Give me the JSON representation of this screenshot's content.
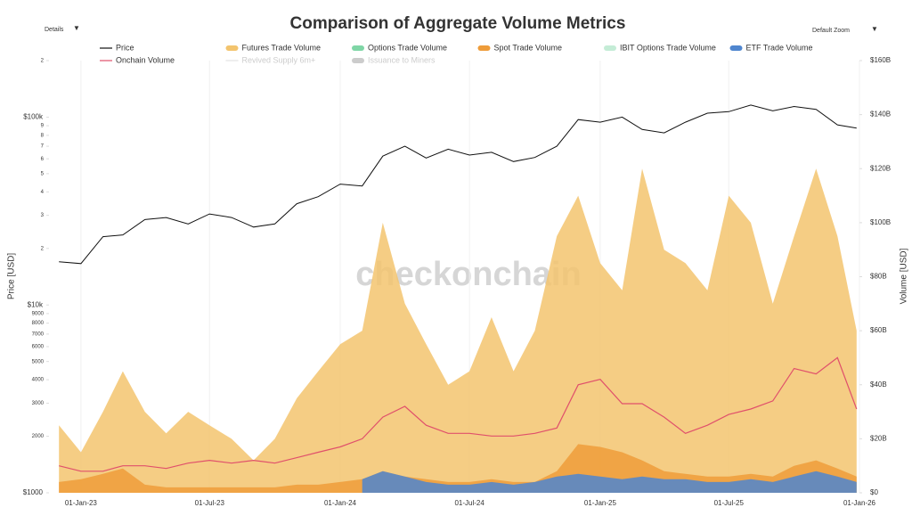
{
  "controls": {
    "details": "Details",
    "zoom": "Default Zoom"
  },
  "watermark": "checkonchain",
  "chart_data": {
    "type": "line",
    "title": "Comparison of Aggregate Volume Metrics",
    "ylabel": "Price [USD]",
    "y2label": "Volume [USD]",
    "log_y": true,
    "grid": true,
    "xlim": [
      "2022-11-17",
      "2026-01-01"
    ],
    "xticks": [
      {
        "value": "2023-01-01",
        "label": "01-Jan-23"
      },
      {
        "value": "2023-07-01",
        "label": "01-Jul-23"
      },
      {
        "value": "2024-01-01",
        "label": "01-Jan-24"
      },
      {
        "value": "2024-07-01",
        "label": "01-Jul-24"
      },
      {
        "value": "2025-01-01",
        "label": "01-Jan-25"
      },
      {
        "value": "2025-07-01",
        "label": "01-Jul-25"
      },
      {
        "value": "2026-01-01",
        "label": "01-Jan-26"
      }
    ],
    "ylim": [
      1000,
      200000
    ],
    "yticks": [
      {
        "value": 1000,
        "label": "$1000"
      },
      2000,
      3000,
      4000,
      5000,
      6000,
      7000,
      8000,
      9000,
      {
        "value": 10000,
        "label": "$10k"
      },
      {
        "value": 20000,
        "label": "2"
      },
      {
        "value": 30000,
        "label": "3"
      },
      {
        "value": 40000,
        "label": "4"
      },
      {
        "value": 50000,
        "label": "5"
      },
      {
        "value": 60000,
        "label": "6"
      },
      {
        "value": 70000,
        "label": "7"
      },
      {
        "value": 80000,
        "label": "8"
      },
      {
        "value": 90000,
        "label": "9"
      },
      {
        "value": 100000,
        "label": "$100k"
      },
      {
        "value": 200000,
        "label": "2"
      }
    ],
    "y2lim": [
      0,
      160
    ],
    "y2ticks": [
      {
        "value": 0,
        "label": "$0"
      },
      {
        "value": 20,
        "label": "$20B"
      },
      {
        "value": 40,
        "label": "$40B"
      },
      {
        "value": 60,
        "label": "$60B"
      },
      {
        "value": 80,
        "label": "$80B"
      },
      {
        "value": 100,
        "label": "$100B"
      },
      {
        "value": 120,
        "label": "$120B"
      },
      {
        "value": 140,
        "label": "$140B"
      },
      {
        "value": 160,
        "label": "$160B"
      }
    ],
    "x": [
      "2022-12-01",
      "2023-01-01",
      "2023-02-01",
      "2023-03-01",
      "2023-04-01",
      "2023-05-01",
      "2023-06-01",
      "2023-07-01",
      "2023-08-01",
      "2023-09-01",
      "2023-10-01",
      "2023-11-01",
      "2023-12-01",
      "2024-01-01",
      "2024-02-01",
      "2024-03-01",
      "2024-04-01",
      "2024-05-01",
      "2024-06-01",
      "2024-07-01",
      "2024-08-01",
      "2024-09-01",
      "2024-10-01",
      "2024-11-01",
      "2024-12-01",
      "2025-01-01",
      "2025-02-01",
      "2025-03-01",
      "2025-04-01",
      "2025-05-01",
      "2025-06-01",
      "2025-07-01",
      "2025-08-01",
      "2025-09-01",
      "2025-10-01",
      "2025-11-01",
      "2025-12-01",
      "2025-12-28"
    ],
    "series": [
      {
        "name": "Price",
        "color": "#111111",
        "style": "line",
        "axis": "y",
        "values": [
          17000,
          16600,
          23100,
          23600,
          28500,
          29200,
          27000,
          30500,
          29200,
          26000,
          27000,
          34600,
          37700,
          44000,
          43000,
          62000,
          70000,
          60600,
          67500,
          62800,
          65000,
          58000,
          61000,
          70000,
          97000,
          94000,
          100000,
          86000,
          82500,
          94000,
          105000,
          107000,
          116000,
          108000,
          114000,
          110000,
          91000,
          87500
        ]
      },
      {
        "name": "Futures Trade Volume",
        "color": "#f3c46e",
        "style": "area",
        "axis": "y2",
        "values": [
          25,
          15,
          30,
          45,
          30,
          22,
          30,
          25,
          20,
          12,
          20,
          35,
          45,
          55,
          60,
          100,
          70,
          55,
          40,
          45,
          65,
          45,
          60,
          95,
          110,
          85,
          75,
          120,
          90,
          85,
          75,
          110,
          100,
          70,
          95,
          120,
          95,
          60
        ]
      },
      {
        "name": "Options Trade Volume",
        "color": "#7fd6a6",
        "style": "area",
        "axis": "y2",
        "visible": false
      },
      {
        "name": "Spot Trade Volume",
        "color": "#ee9c3a",
        "style": "area",
        "axis": "y2",
        "values": [
          4,
          5,
          7,
          9,
          3,
          2,
          2,
          2,
          2,
          2,
          2,
          3,
          3,
          4,
          5,
          8,
          6,
          5,
          4,
          4,
          5,
          4,
          4,
          8,
          18,
          17,
          15,
          12,
          8,
          7,
          6,
          6,
          7,
          6,
          10,
          12,
          9,
          6
        ]
      },
      {
        "name": "IBIT Options Trade Volume",
        "color": "#c4ecd6",
        "style": "area",
        "axis": "y2",
        "visible": false
      },
      {
        "name": "ETF Trade Volume",
        "color": "#4f86cf",
        "style": "area",
        "axis": "y2",
        "values": [
          null,
          null,
          null,
          null,
          null,
          null,
          null,
          null,
          null,
          null,
          null,
          null,
          null,
          null,
          5,
          8,
          6,
          4,
          3,
          3,
          4,
          3,
          4,
          6,
          7,
          6,
          5,
          6,
          5,
          5,
          4,
          4,
          5,
          4,
          6,
          8,
          6,
          4
        ]
      },
      {
        "name": "Onchain Volume",
        "color": "#e0506b",
        "style": "line",
        "axis": "y2",
        "values": [
          10,
          8,
          8,
          10,
          10,
          9,
          11,
          12,
          11,
          12,
          11,
          13,
          15,
          17,
          20,
          28,
          32,
          25,
          22,
          22,
          21,
          21,
          22,
          24,
          40,
          42,
          33,
          33,
          28,
          22,
          25,
          29,
          31,
          34,
          46,
          44,
          50,
          31
        ]
      },
      {
        "name": "Revived Supply 6m+",
        "color": "#c8c8c8",
        "style": "line",
        "axis": "y2",
        "visible": false,
        "disabled": true
      },
      {
        "name": "Issuance to Miners",
        "color": "#9a9a9a",
        "style": "area",
        "axis": "y2",
        "visible": false,
        "disabled": true
      }
    ]
  }
}
